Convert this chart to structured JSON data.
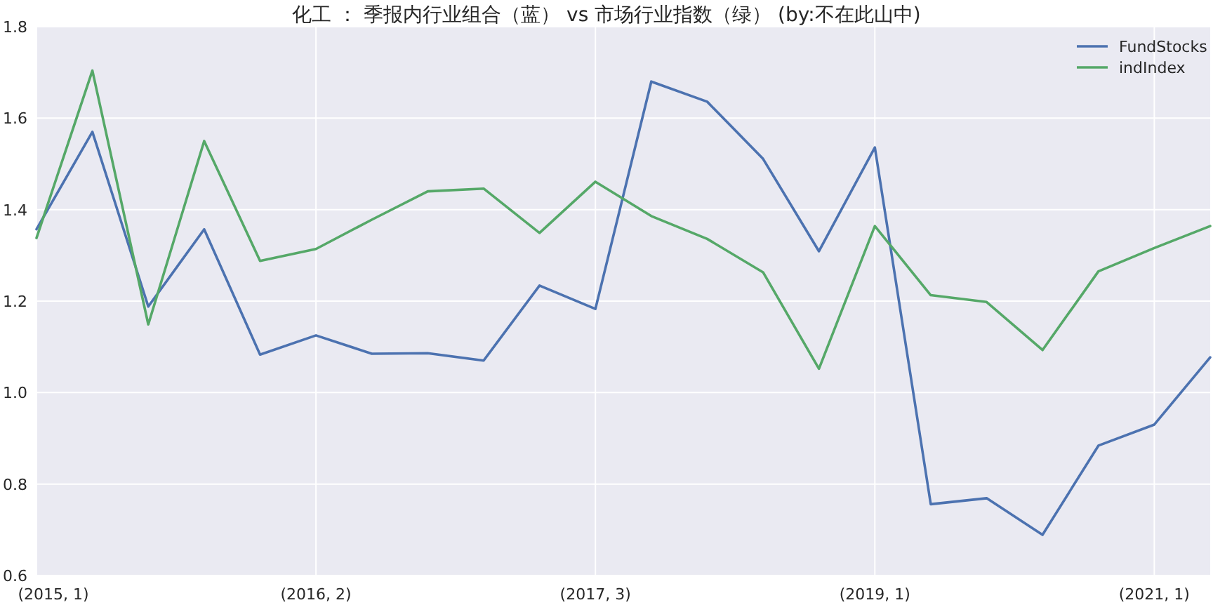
{
  "chart_data": {
    "type": "line",
    "title": "化工 ： 季报内行业组合（蓝） vs 市场行业指数（绿） (by:不在此山中)",
    "categories": [
      "(2015, 1)",
      null,
      null,
      null,
      null,
      "(2016, 2)",
      null,
      null,
      null,
      null,
      "(2017, 3)",
      null,
      null,
      null,
      null,
      "(2019, 1)",
      null,
      null,
      null,
      null,
      "(2021, 1)",
      null
    ],
    "series": [
      {
        "name": "FundStocks",
        "color": "#4c72b0",
        "values": [
          1.357,
          1.57,
          1.188,
          1.357,
          1.083,
          1.125,
          1.085,
          1.086,
          1.07,
          1.234,
          1.183,
          1.68,
          1.636,
          1.511,
          1.309,
          1.536,
          0.756,
          0.769,
          0.689,
          0.884,
          0.93,
          1.077
        ]
      },
      {
        "name": "indIndex",
        "color": "#55a868",
        "values": [
          1.338,
          1.704,
          1.149,
          1.55,
          1.288,
          1.314,
          1.378,
          1.44,
          1.446,
          1.349,
          1.461,
          1.386,
          1.336,
          1.263,
          1.052,
          1.364,
          1.213,
          1.198,
          1.093,
          1.265,
          1.316,
          1.364
        ]
      }
    ],
    "ylim": [
      0.6,
      1.8
    ],
    "yticks": [
      0.6,
      0.8,
      {
        "value": 1,
        "label": "1.0"
      },
      1.2,
      1.4,
      1.6,
      1.8
    ],
    "grid": true,
    "legend": "top right",
    "marker": "none",
    "line_style": "solid"
  }
}
